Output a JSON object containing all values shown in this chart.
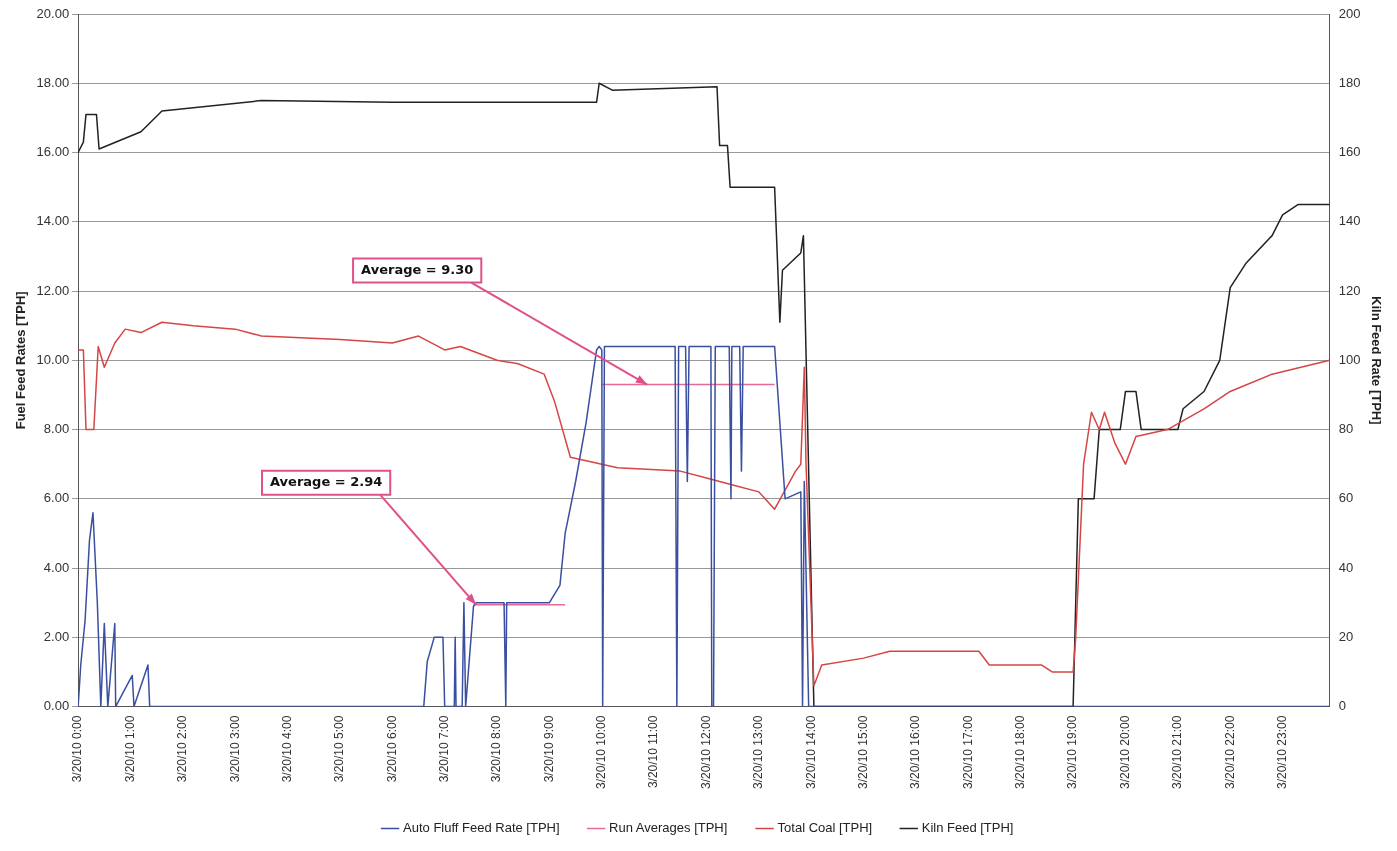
{
  "chart_data": {
    "type": "line",
    "ylabel": "Fuel Feed Rates [TPH]",
    "y2label": "Kiln Feed Rate [TPH]",
    "xlim": [
      "--03-20T00:00",
      "--03-20T23:54"
    ],
    "xticks": [
      {
        "value": "--03-20T00:00",
        "label": "3/20/10 0:00"
      },
      {
        "value": "--03-20T01:00",
        "label": "3/20/10 1:00"
      },
      {
        "value": "--03-20T02:00",
        "label": "3/20/10 2:00"
      },
      {
        "value": "--03-20T03:00",
        "label": "3/20/10 3:00"
      },
      {
        "value": "--03-20T04:00",
        "label": "3/20/10 4:00"
      },
      {
        "value": "--03-20T05:00",
        "label": "3/20/10 5:00"
      },
      {
        "value": "--03-20T06:00",
        "label": "3/20/10 6:00"
      },
      {
        "value": "--03-20T07:00",
        "label": "3/20/10 7:00"
      },
      {
        "value": "--03-20T08:00",
        "label": "3/20/10 8:00"
      },
      {
        "value": "--03-20T09:00",
        "label": "3/20/10 9:00"
      },
      {
        "value": "--03-20T10:00",
        "label": "3/20/10 10:00"
      },
      {
        "value": "--03-20T11:00",
        "label": "3/20/10 11:00"
      },
      {
        "value": "--03-20T12:00",
        "label": "3/20/10 12:00"
      },
      {
        "value": "--03-20T13:00",
        "label": "3/20/10 13:00"
      },
      {
        "value": "--03-20T14:00",
        "label": "3/20/10 14:00"
      },
      {
        "value": "--03-20T15:00",
        "label": "3/20/10 15:00"
      },
      {
        "value": "--03-20T16:00",
        "label": "3/20/10 16:00"
      },
      {
        "value": "--03-20T17:00",
        "label": "3/20/10 17:00"
      },
      {
        "value": "--03-20T18:00",
        "label": "3/20/10 18:00"
      },
      {
        "value": "--03-20T19:00",
        "label": "3/20/10 19:00"
      },
      {
        "value": "--03-20T20:00",
        "label": "3/20/10 20:00"
      },
      {
        "value": "--03-20T21:00",
        "label": "3/20/10 21:00"
      },
      {
        "value": "--03-20T22:00",
        "label": "3/20/10 22:00"
      },
      {
        "value": "--03-20T23:00",
        "label": "3/20/10 23:00"
      }
    ],
    "ylim": [
      0,
      20
    ],
    "yticks": [
      {
        "value": 0,
        "label": "0.00"
      },
      {
        "value": 2,
        "label": "2.00"
      },
      {
        "value": 4,
        "label": "4.00"
      },
      {
        "value": 6,
        "label": "6.00"
      },
      {
        "value": 8,
        "label": "8.00"
      },
      {
        "value": 10,
        "label": "10.00"
      },
      {
        "value": 12,
        "label": "12.00"
      },
      {
        "value": 14,
        "label": "14.00"
      },
      {
        "value": 16,
        "label": "16.00"
      },
      {
        "value": 18,
        "label": "18.00"
      },
      {
        "value": 20,
        "label": "20.00"
      }
    ],
    "y2lim": [
      0,
      200
    ],
    "y2ticks": [
      0,
      20,
      40,
      60,
      80,
      100,
      120,
      140,
      160,
      180,
      200
    ],
    "grid": "y",
    "legend": "bottom",
    "marker": "none",
    "line_style": "solid",
    "series": [
      {
        "name": "Auto Fluff Feed Rate [TPH]",
        "color": "#3a4fa0",
        "x": [
          "--03-20T00:00",
          "--03-20T00:03",
          "--03-20T00:08",
          "--03-20T00:13",
          "--03-20T00:17",
          "--03-20T00:22",
          "--03-20T00:26",
          "--03-20T00:30",
          "--03-20T00:34",
          "--03-20T00:42",
          "--03-20T00:43",
          "--03-20T01:02",
          "--03-20T01:04",
          "--03-20T01:20",
          "--03-20T01:22",
          "--03-20T06:36",
          "--03-20T06:40",
          "--03-20T06:48",
          "--03-20T06:58",
          "--03-20T07:00",
          "--03-20T07:11",
          "--03-20T07:12",
          "--03-20T07:13",
          "--03-20T07:20",
          "--03-20T07:22",
          "--03-20T07:24",
          "--03-20T07:33",
          "--03-20T07:36",
          "--03-20T08:08",
          "--03-20T08:10",
          "--03-20T08:11",
          "--03-20T09:00",
          "--03-20T09:12",
          "--03-20T09:18",
          "--03-20T09:30",
          "--03-20T09:42",
          "--03-20T09:54",
          "--03-20T09:57",
          "--03-20T10:00",
          "--03-20T10:01",
          "--03-20T10:03",
          "--03-20T11:24",
          "--03-20T11:26",
          "--03-20T11:28",
          "--03-20T11:36",
          "--03-20T11:38",
          "--03-20T11:40",
          "--03-20T12:05",
          "--03-20T12:06",
          "--03-20T12:08",
          "--03-20T12:10",
          "--03-20T12:11",
          "--03-20T12:26",
          "--03-20T12:28",
          "--03-20T12:29",
          "--03-20T12:38",
          "--03-20T12:40",
          "--03-20T12:42",
          "--03-20T13:18",
          "--03-20T13:30",
          "--03-20T13:48",
          "--03-20T13:50",
          "--03-20T13:52",
          "--03-20T13:57",
          "--03-20T14:03",
          "--03-20T23:54"
        ],
        "values": [
          0,
          1.2,
          2.5,
          4.8,
          5.6,
          3,
          0,
          2.4,
          0,
          2.4,
          0,
          0.9,
          0,
          1.2,
          0,
          0,
          1.3,
          2,
          2,
          0,
          0,
          2,
          0,
          0,
          3,
          0,
          2.9,
          3,
          3,
          0,
          3,
          3,
          3.5,
          5,
          6.5,
          8.2,
          10.3,
          10.4,
          10.3,
          0,
          10.4,
          10.4,
          0,
          10.4,
          10.4,
          6.5,
          10.4,
          10.4,
          0,
          0,
          10.4,
          10.4,
          10.4,
          6,
          10.4,
          10.4,
          6.8,
          10.4,
          10.4,
          6,
          6.2,
          0,
          6.5,
          0,
          0,
          0
        ]
      },
      {
        "name": "Run Averages [TPH]",
        "color": "#e86a9a",
        "x": [
          "--03-20T07:33",
          "--03-20T09:18",
          "--03-20T09:19",
          "--03-20T10:00",
          "--03-20T13:18"
        ],
        "values": [
          2.94,
          2.94,
          null,
          9.3,
          9.3
        ]
      },
      {
        "name": "Total Coal [TPH]",
        "color": "#d64545",
        "x": [
          "--03-20T00:00",
          "--03-20T00:06",
          "--03-20T00:09",
          "--03-20T00:18",
          "--03-20T00:23",
          "--03-20T00:30",
          "--03-20T00:42",
          "--03-20T00:54",
          "--03-20T01:12",
          "--03-20T01:36",
          "--03-20T02:12",
          "--03-20T03:00",
          "--03-20T03:30",
          "--03-20T05:00",
          "--03-20T06:00",
          "--03-20T06:30",
          "--03-20T07:00",
          "--03-20T07:18",
          "--03-20T08:00",
          "--03-20T08:24",
          "--03-20T08:54",
          "--03-20T09:06",
          "--03-20T09:24",
          "--03-20T10:18",
          "--03-20T11:30",
          "--03-20T12:00",
          "--03-20T12:30",
          "--03-20T13:00",
          "--03-20T13:18",
          "--03-20T13:42",
          "--03-20T13:48",
          "--03-20T13:52",
          "--03-20T13:54",
          "--03-20T14:03",
          "--03-20T14:12",
          "--03-20T15:00",
          "--03-20T15:30",
          "--03-20T17:12",
          "--03-20T17:24",
          "--03-20T18:24",
          "--03-20T18:36",
          "--03-20T19:00",
          "--03-20T19:03",
          "--03-20T19:12",
          "--03-20T19:21",
          "--03-20T19:30",
          "--03-20T19:36",
          "--03-20T19:48",
          "--03-20T20:00",
          "--03-20T20:12",
          "--03-20T20:48",
          "--03-20T21:30",
          "--03-20T22:00",
          "--03-20T22:48",
          "--03-20T23:54"
        ],
        "values": [
          10.3,
          10.3,
          8,
          8,
          10.4,
          9.8,
          10.5,
          10.9,
          10.8,
          11.1,
          11,
          10.9,
          10.7,
          10.6,
          10.5,
          10.7,
          10.3,
          10.4,
          10,
          9.9,
          9.6,
          8.8,
          7.2,
          6.9,
          6.8,
          6.6,
          6.4,
          6.2,
          5.7,
          6.8,
          7,
          9.8,
          7,
          0.6,
          1.2,
          1.4,
          1.6,
          1.6,
          1.2,
          1.2,
          1,
          1,
          2,
          7,
          8.5,
          8,
          8.5,
          7.6,
          7,
          7.8,
          8,
          8.6,
          9.1,
          9.6,
          10
        ]
      },
      {
        "name": "Kiln Feed [TPH]",
        "color": "#222222",
        "axis": "y2",
        "x": [
          "--03-20T00:00",
          "--03-20T00:06",
          "--03-20T00:09",
          "--03-20T00:21",
          "--03-20T00:24",
          "--03-20T01:12",
          "--03-20T01:36",
          "--03-20T03:30",
          "--03-20T06:00",
          "--03-20T09:54",
          "--03-20T09:57",
          "--03-20T10:12",
          "--03-20T12:12",
          "--03-20T12:15",
          "--03-20T12:24",
          "--03-20T12:27",
          "--03-20T13:18",
          "--03-20T13:24",
          "--03-20T13:27",
          "--03-20T13:48",
          "--03-20T13:51",
          "--03-20T14:03",
          "--03-20T19:00",
          "--03-20T19:06",
          "--03-20T19:24",
          "--03-20T19:30",
          "--03-20T19:54",
          "--03-20T20:00",
          "--03-20T20:12",
          "--03-20T20:18",
          "--03-20T21:00",
          "--03-20T21:06",
          "--03-20T21:30",
          "--03-20T21:48",
          "--03-20T22:00",
          "--03-20T22:18",
          "--03-20T22:48",
          "--03-20T23:00",
          "--03-20T23:18",
          "--03-20T23:54"
        ],
        "values": [
          160,
          163,
          171,
          171,
          161,
          166,
          172,
          175,
          174.5,
          174.5,
          180,
          178,
          179,
          162,
          162,
          150,
          150,
          111,
          126,
          131,
          136,
          0,
          0,
          60,
          60,
          80,
          80,
          91,
          91,
          80,
          80,
          86,
          91,
          100,
          121,
          128,
          136,
          142,
          145,
          145
        ]
      }
    ],
    "annotations": [
      {
        "text": "Average = 2.94",
        "x": "--03-20T07:36",
        "y": 2.94
      },
      {
        "text": "Average = 9.30",
        "x": "--03-20T10:52",
        "y": 9.3
      }
    ]
  }
}
